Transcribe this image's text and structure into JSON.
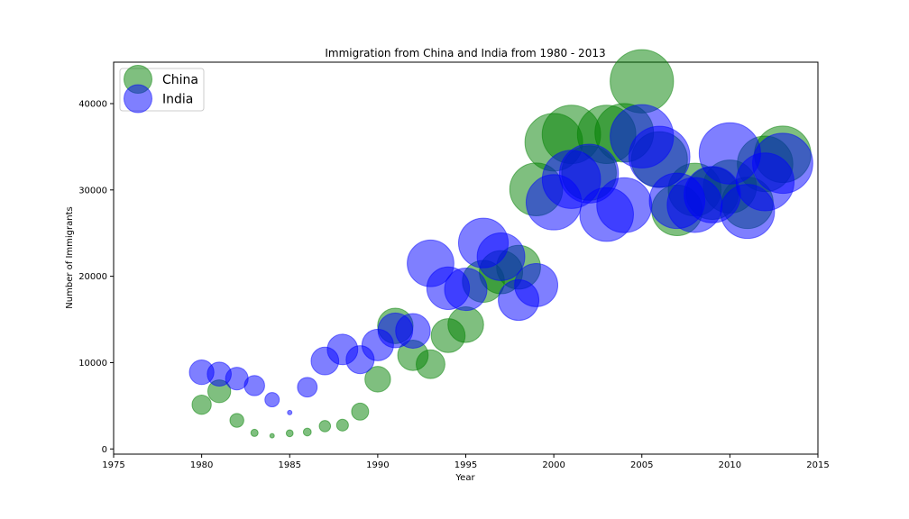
{
  "chart_data": {
    "type": "scatter",
    "title": "Immigration from China and India from 1980 - 2013",
    "xlabel": "Year",
    "ylabel": "Number of Immigrants",
    "xlim": [
      1975,
      2015
    ],
    "ylim": [
      -600,
      44800
    ],
    "xticks": [
      1975,
      1980,
      1985,
      1990,
      1995,
      2000,
      2005,
      2010,
      2015
    ],
    "yticks": [
      0,
      10000,
      20000,
      30000,
      40000
    ],
    "x_tick_labels": [
      "1975",
      "1980",
      "1985",
      "1990",
      "1995",
      "2000",
      "2005",
      "2010",
      "2015"
    ],
    "y_tick_labels": [
      "0",
      "10000",
      "20000",
      "30000",
      "40000"
    ],
    "grid": false,
    "legend_position": "top-left",
    "bubble_note": "bubble area encodes normalized immigrant count",
    "series": [
      {
        "name": "China",
        "color": "#008000",
        "alpha": 0.5,
        "x": [
          1980,
          1981,
          1982,
          1983,
          1984,
          1985,
          1986,
          1987,
          1988,
          1989,
          1990,
          1991,
          1992,
          1993,
          1994,
          1995,
          1996,
          1997,
          1998,
          1999,
          2000,
          2001,
          2002,
          2003,
          2004,
          2005,
          2006,
          2007,
          2008,
          2009,
          2010,
          2011,
          2012,
          2013
        ],
        "y": [
          5123,
          6682,
          3308,
          1863,
          1527,
          1816,
          1960,
          2643,
          2758,
          4323,
          8076,
          14255,
          10846,
          9817,
          13128,
          14398,
          19415,
          20475,
          21049,
          30069,
          35529,
          36434,
          31961,
          36439,
          36619,
          42584,
          33518,
          27642,
          30037,
          29622,
          30391,
          28502,
          33024,
          34129
        ]
      },
      {
        "name": "India",
        "color": "#0000FF",
        "alpha": 0.5,
        "x": [
          1980,
          1981,
          1982,
          1983,
          1984,
          1985,
          1986,
          1987,
          1988,
          1989,
          1990,
          1991,
          1992,
          1993,
          1994,
          1995,
          1996,
          1997,
          1998,
          1999,
          2000,
          2001,
          2002,
          2003,
          2004,
          2005,
          2006,
          2007,
          2008,
          2009,
          2010,
          2011,
          2012,
          2013
        ],
        "y": [
          8880,
          8670,
          8147,
          7338,
          5704,
          4211,
          7150,
          10189,
          11522,
          10343,
          12041,
          13734,
          13673,
          21496,
          18620,
          18489,
          23859,
          22268,
          17241,
          18974,
          28572,
          31223,
          31889,
          27155,
          28235,
          36210,
          33848,
          28742,
          28261,
          29456,
          34235,
          27509,
          30933,
          33087
        ]
      }
    ]
  }
}
